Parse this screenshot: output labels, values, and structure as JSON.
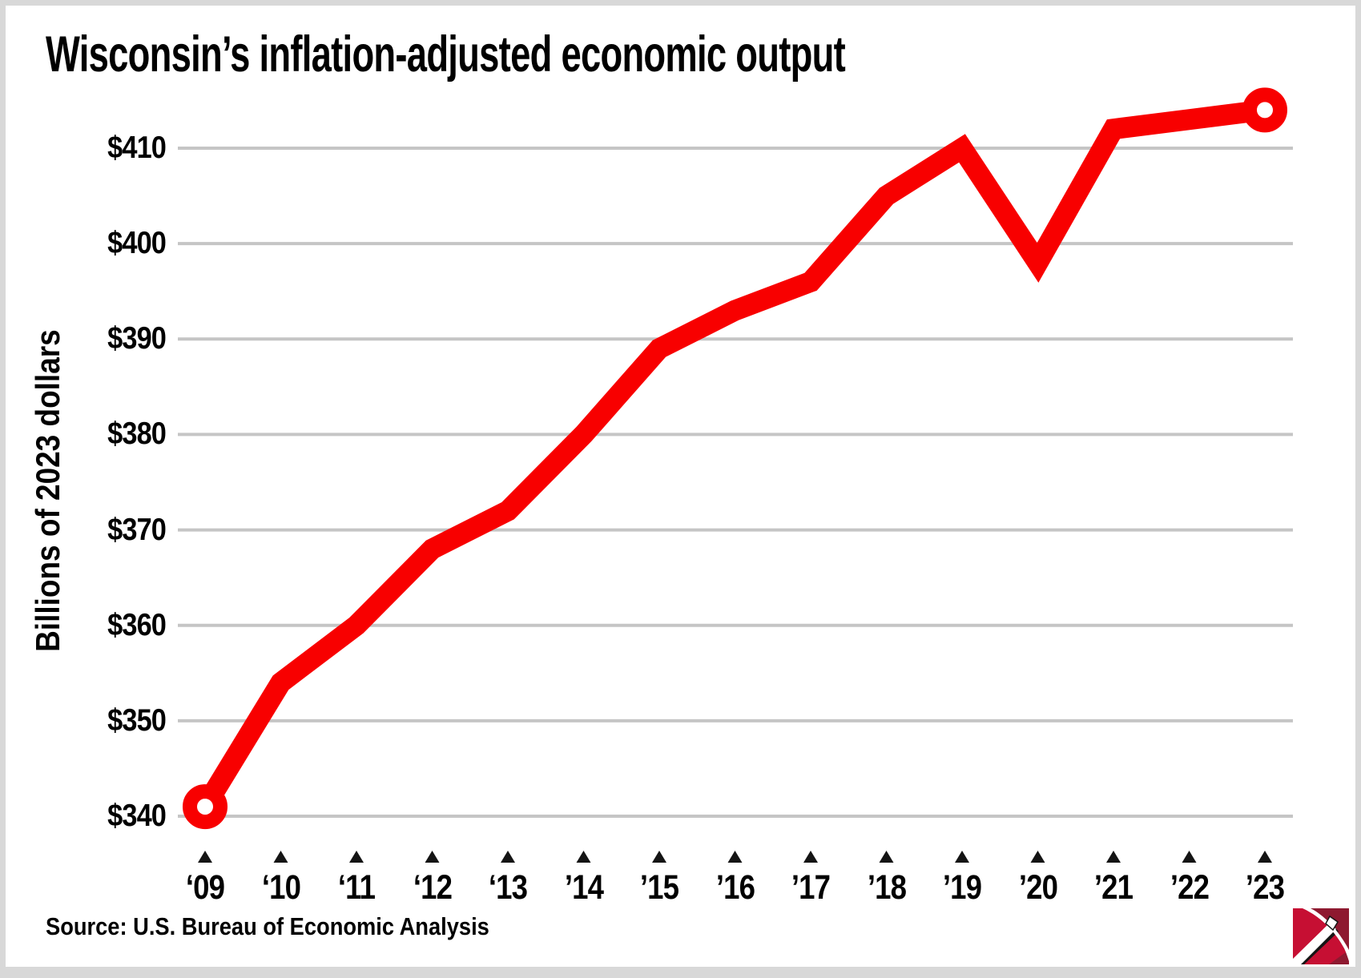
{
  "page": {
    "title": "Wisconsin’s inflation-adjusted economic output",
    "source": "Source: U.S. Bureau of Economic Analysis"
  },
  "y_axis": {
    "title": "Billions of 2023 dollars",
    "ticks": [
      {
        "label": "$410",
        "value": 410
      },
      {
        "label": "$400",
        "value": 400
      },
      {
        "label": "$390",
        "value": 390
      },
      {
        "label": "$380",
        "value": 380
      },
      {
        "label": "$370",
        "value": 370
      },
      {
        "label": "$360",
        "value": 360
      },
      {
        "label": "$350",
        "value": 350
      },
      {
        "label": "$340",
        "value": 340
      }
    ]
  },
  "x_axis": {
    "ticks": [
      {
        "label": "‘09",
        "year": 2009
      },
      {
        "label": "‘10",
        "year": 2010
      },
      {
        "label": "‘11",
        "year": 2011
      },
      {
        "label": "‘12",
        "year": 2012
      },
      {
        "label": "‘13",
        "year": 2013
      },
      {
        "label": "’14",
        "year": 2014
      },
      {
        "label": "’15",
        "year": 2015
      },
      {
        "label": "’16",
        "year": 2016
      },
      {
        "label": "’17",
        "year": 2017
      },
      {
        "label": "’18",
        "year": 2018
      },
      {
        "label": "’19",
        "year": 2019
      },
      {
        "label": "’20",
        "year": 2020
      },
      {
        "label": "’21",
        "year": 2021
      },
      {
        "label": "’22",
        "year": 2022
      },
      {
        "label": "’23",
        "year": 2023
      }
    ]
  },
  "colors": {
    "line": "#F80000",
    "gridline": "#C5C5C5",
    "triangle": "#141414",
    "text": "#000000",
    "page_bg": "#FFFFFF",
    "frame_bg": "#D8D8D8",
    "marker_fill": "#FFFFFF",
    "logo_red": "#C60F33",
    "logo_dark_red": "#8E1930",
    "logo_shadow": "#151515"
  },
  "chart_data": {
    "type": "line",
    "title": "Wisconsin’s inflation-adjusted economic output",
    "x": [
      2009,
      2010,
      2011,
      2012,
      2013,
      2014,
      2015,
      2016,
      2017,
      2018,
      2019,
      2020,
      2021,
      2022,
      2023
    ],
    "x_tick_labels": [
      "‘09",
      "‘10",
      "‘11",
      "‘12",
      "‘13",
      "’14",
      "’15",
      "’16",
      "’17",
      "’18",
      "’19",
      "’20",
      "’21",
      "’22",
      "’23"
    ],
    "series": [
      {
        "name": "Wisconsin inflation-adjusted economic output",
        "values": [
          341,
          354,
          360,
          368,
          372,
          380,
          389,
          393,
          396,
          405,
          410,
          398,
          412,
          413,
          414
        ]
      }
    ],
    "xlabel": "",
    "ylabel": "Billions of 2023 dollars",
    "ylim": [
      336,
      417
    ],
    "y_ticks": [
      340,
      350,
      360,
      370,
      380,
      390,
      400,
      410
    ],
    "y_tick_prefix": "$",
    "grid": "horizontal",
    "legend": "none",
    "line_color": "#F80000",
    "endpoint_marker_years": [
      2009,
      2023
    ]
  }
}
